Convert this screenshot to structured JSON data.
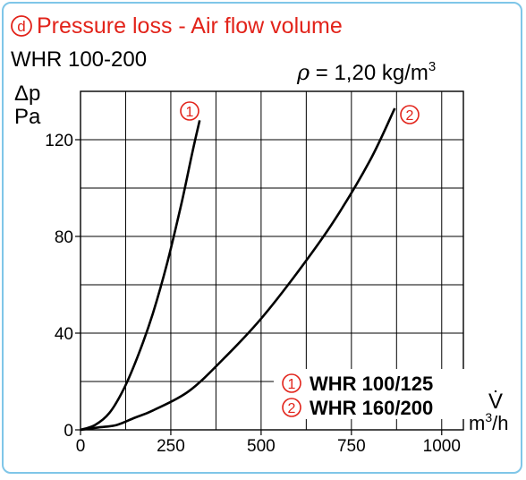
{
  "header": {
    "badge": "d",
    "title": "Pressure loss - Air flow volume",
    "subtitle": "WHR 100-200",
    "density_symbol": "ρ",
    "density_eq": " = 1,20 kg/m",
    "density_exp": "3"
  },
  "colors": {
    "accent": "#e2231a",
    "frame": "#7fc6e8",
    "grid": "#000000",
    "curve": "#000000"
  },
  "chart_data": {
    "type": "line",
    "title": "Pressure loss - Air flow volume",
    "ylabel_top": "Δp",
    "ylabel_unit": "Pa",
    "xlabel_symbol": "V̇",
    "xlabel_unit": "m",
    "xlabel_unit_exp": "3",
    "xlabel_unit_tail": "/h",
    "xlim": [
      0,
      1060
    ],
    "ylim": [
      0,
      140
    ],
    "x_ticks": [
      0,
      250,
      500,
      750,
      1000
    ],
    "x_tick_labels": [
      "0",
      "250",
      "500",
      "750",
      "1000"
    ],
    "y_ticks": [
      0,
      40,
      80,
      120
    ],
    "y_tick_labels": [
      "0",
      "40",
      "80",
      "120"
    ],
    "grid": true,
    "legend_position": "bottom-right",
    "series": [
      {
        "marker": "1",
        "name": "WHR 100/125",
        "x": [
          0,
          40,
          80,
          120,
          160,
          200,
          240,
          280,
          310,
          330
        ],
        "y": [
          0,
          2,
          7,
          17,
          31,
          48,
          69,
          94,
          115,
          128
        ]
      },
      {
        "marker": "2",
        "name": "WHR 160/200",
        "x": [
          0,
          50,
          100,
          150,
          200,
          300,
          400,
          500,
          600,
          700,
          800,
          870
        ],
        "y": [
          0,
          1,
          2,
          5,
          8,
          16,
          30,
          46,
          65,
          86,
          111,
          133
        ]
      }
    ]
  }
}
